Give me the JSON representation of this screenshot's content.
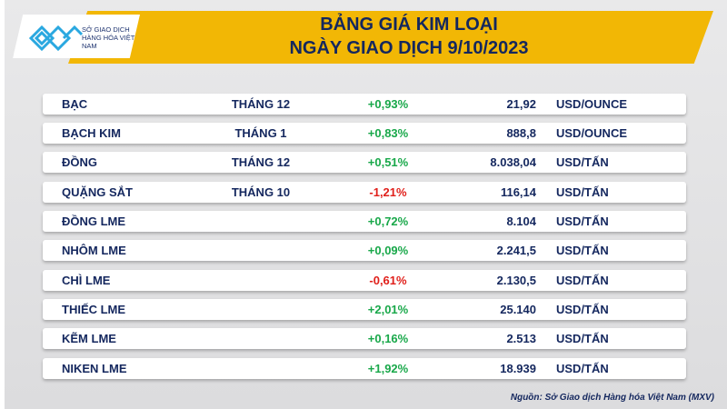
{
  "logo": {
    "text": "SỞ GIAO DỊCH HÀNG HÓA VIỆT NAM"
  },
  "title": {
    "line1": "BẢNG GIÁ KIM LOẠI",
    "line2": "NGÀY GIAO DỊCH 9/10/2023"
  },
  "colors": {
    "band": "#f2b705",
    "navy": "#14275e",
    "positive": "#19a84a",
    "negative": "#e0201b"
  },
  "rows": [
    {
      "name": "BẠC",
      "month": "THÁNG 12",
      "change": "+0,93%",
      "price": "21,92",
      "unit": "USD/OUNCE"
    },
    {
      "name": "BẠCH KIM",
      "month": "THÁNG 1",
      "change": "+0,83%",
      "price": "888,8",
      "unit": "USD/OUNCE"
    },
    {
      "name": "ĐỒNG",
      "month": "THÁNG 12",
      "change": "+0,51%",
      "price": "8.038,04",
      "unit": "USD/TẤN"
    },
    {
      "name": "QUẶNG SẮT",
      "month": "THÁNG 10",
      "change": "-1,21%",
      "price": "116,14",
      "unit": "USD/TẤN"
    },
    {
      "name": "ĐỒNG LME",
      "month": "",
      "change": "+0,72%",
      "price": "8.104",
      "unit": "USD/TẤN"
    },
    {
      "name": "NHÔM LME",
      "month": "",
      "change": "+0,09%",
      "price": "2.241,5",
      "unit": "USD/TẤN"
    },
    {
      "name": "CHÌ LME",
      "month": "",
      "change": "-0,61%",
      "price": "2.130,5",
      "unit": "USD/TẤN"
    },
    {
      "name": "THIẾC LME",
      "month": "",
      "change": "+2,01%",
      "price": "25.140",
      "unit": "USD/TẤN"
    },
    {
      "name": "KẼM LME",
      "month": "",
      "change": "+0,16%",
      "price": "2.513",
      "unit": "USD/TẤN"
    },
    {
      "name": "NIKEN LME",
      "month": "",
      "change": "+1,92%",
      "price": "18.939",
      "unit": "USD/TẤN"
    }
  ],
  "source": "Nguồn: Sở Giao dịch Hàng hóa Việt Nam (MXV)"
}
